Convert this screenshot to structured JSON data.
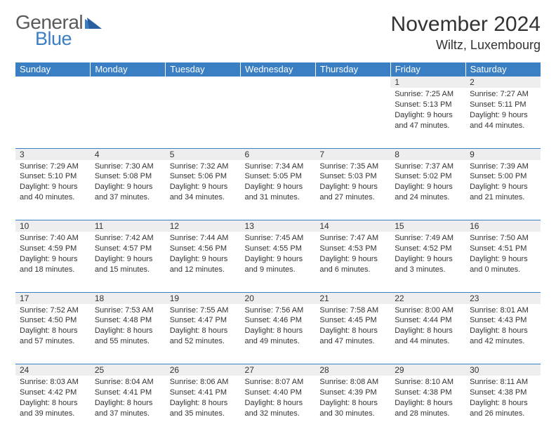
{
  "brand": {
    "word1": "General",
    "word2": "Blue",
    "word1_color": "#5a5a5a",
    "word2_color": "#3a7fc4"
  },
  "title": "November 2024",
  "location": "Wiltz, Luxembourg",
  "header_bg": "#3a7fc4",
  "header_fg": "#ffffff",
  "daynum_bg": "#eeeeee",
  "border_color": "#3a7fc4",
  "weekdays": [
    "Sunday",
    "Monday",
    "Tuesday",
    "Wednesday",
    "Thursday",
    "Friday",
    "Saturday"
  ],
  "weeks": [
    [
      null,
      null,
      null,
      null,
      null,
      {
        "n": "1",
        "sr": "7:25 AM",
        "ss": "5:13 PM",
        "dl": "9 hours and 47 minutes."
      },
      {
        "n": "2",
        "sr": "7:27 AM",
        "ss": "5:11 PM",
        "dl": "9 hours and 44 minutes."
      }
    ],
    [
      {
        "n": "3",
        "sr": "7:29 AM",
        "ss": "5:10 PM",
        "dl": "9 hours and 40 minutes."
      },
      {
        "n": "4",
        "sr": "7:30 AM",
        "ss": "5:08 PM",
        "dl": "9 hours and 37 minutes."
      },
      {
        "n": "5",
        "sr": "7:32 AM",
        "ss": "5:06 PM",
        "dl": "9 hours and 34 minutes."
      },
      {
        "n": "6",
        "sr": "7:34 AM",
        "ss": "5:05 PM",
        "dl": "9 hours and 31 minutes."
      },
      {
        "n": "7",
        "sr": "7:35 AM",
        "ss": "5:03 PM",
        "dl": "9 hours and 27 minutes."
      },
      {
        "n": "8",
        "sr": "7:37 AM",
        "ss": "5:02 PM",
        "dl": "9 hours and 24 minutes."
      },
      {
        "n": "9",
        "sr": "7:39 AM",
        "ss": "5:00 PM",
        "dl": "9 hours and 21 minutes."
      }
    ],
    [
      {
        "n": "10",
        "sr": "7:40 AM",
        "ss": "4:59 PM",
        "dl": "9 hours and 18 minutes."
      },
      {
        "n": "11",
        "sr": "7:42 AM",
        "ss": "4:57 PM",
        "dl": "9 hours and 15 minutes."
      },
      {
        "n": "12",
        "sr": "7:44 AM",
        "ss": "4:56 PM",
        "dl": "9 hours and 12 minutes."
      },
      {
        "n": "13",
        "sr": "7:45 AM",
        "ss": "4:55 PM",
        "dl": "9 hours and 9 minutes."
      },
      {
        "n": "14",
        "sr": "7:47 AM",
        "ss": "4:53 PM",
        "dl": "9 hours and 6 minutes."
      },
      {
        "n": "15",
        "sr": "7:49 AM",
        "ss": "4:52 PM",
        "dl": "9 hours and 3 minutes."
      },
      {
        "n": "16",
        "sr": "7:50 AM",
        "ss": "4:51 PM",
        "dl": "9 hours and 0 minutes."
      }
    ],
    [
      {
        "n": "17",
        "sr": "7:52 AM",
        "ss": "4:50 PM",
        "dl": "8 hours and 57 minutes."
      },
      {
        "n": "18",
        "sr": "7:53 AM",
        "ss": "4:48 PM",
        "dl": "8 hours and 55 minutes."
      },
      {
        "n": "19",
        "sr": "7:55 AM",
        "ss": "4:47 PM",
        "dl": "8 hours and 52 minutes."
      },
      {
        "n": "20",
        "sr": "7:56 AM",
        "ss": "4:46 PM",
        "dl": "8 hours and 49 minutes."
      },
      {
        "n": "21",
        "sr": "7:58 AM",
        "ss": "4:45 PM",
        "dl": "8 hours and 47 minutes."
      },
      {
        "n": "22",
        "sr": "8:00 AM",
        "ss": "4:44 PM",
        "dl": "8 hours and 44 minutes."
      },
      {
        "n": "23",
        "sr": "8:01 AM",
        "ss": "4:43 PM",
        "dl": "8 hours and 42 minutes."
      }
    ],
    [
      {
        "n": "24",
        "sr": "8:03 AM",
        "ss": "4:42 PM",
        "dl": "8 hours and 39 minutes."
      },
      {
        "n": "25",
        "sr": "8:04 AM",
        "ss": "4:41 PM",
        "dl": "8 hours and 37 minutes."
      },
      {
        "n": "26",
        "sr": "8:06 AM",
        "ss": "4:41 PM",
        "dl": "8 hours and 35 minutes."
      },
      {
        "n": "27",
        "sr": "8:07 AM",
        "ss": "4:40 PM",
        "dl": "8 hours and 32 minutes."
      },
      {
        "n": "28",
        "sr": "8:08 AM",
        "ss": "4:39 PM",
        "dl": "8 hours and 30 minutes."
      },
      {
        "n": "29",
        "sr": "8:10 AM",
        "ss": "4:38 PM",
        "dl": "8 hours and 28 minutes."
      },
      {
        "n": "30",
        "sr": "8:11 AM",
        "ss": "4:38 PM",
        "dl": "8 hours and 26 minutes."
      }
    ]
  ],
  "labels": {
    "sunrise": "Sunrise:",
    "sunset": "Sunset:",
    "daylight": "Daylight:"
  }
}
